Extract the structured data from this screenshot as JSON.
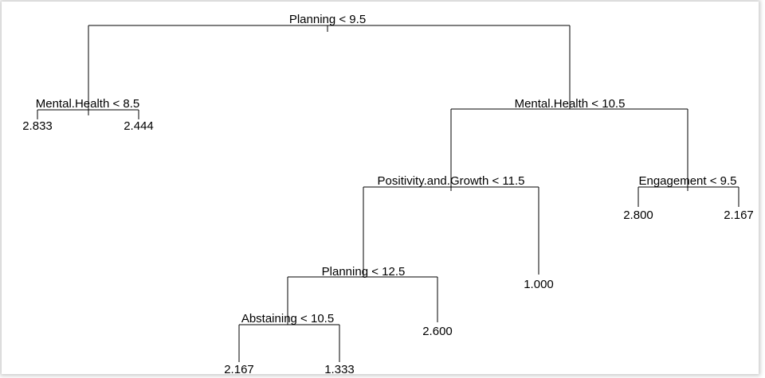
{
  "splits": [
    {
      "label": "Planning < 9.5"
    },
    {
      "label": "Mental.Health < 8.5"
    },
    {
      "label": "Mental.Health < 10.5"
    },
    {
      "label": "Positivity.and.Growth < 11.5"
    },
    {
      "label": "Engagement < 9.5"
    },
    {
      "label": "Planning < 12.5"
    },
    {
      "label": "Abstaining < 10.5"
    }
  ],
  "leaves": [
    {
      "label": "2.833"
    },
    {
      "label": "2.444"
    },
    {
      "label": "2.800"
    },
    {
      "label": "2.167"
    },
    {
      "label": "1.000"
    },
    {
      "label": "2.600"
    },
    {
      "label": "2.167"
    },
    {
      "label": "1.333"
    }
  ]
}
